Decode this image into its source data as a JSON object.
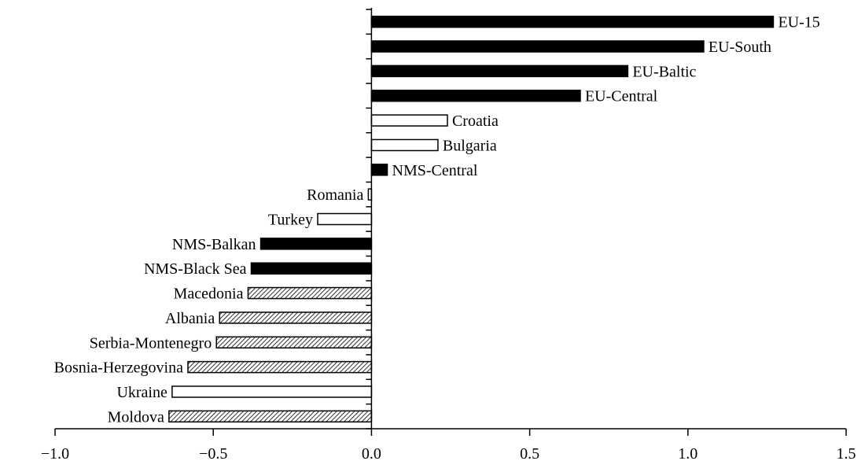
{
  "chart_data": {
    "type": "bar",
    "orientation": "horizontal",
    "title": "",
    "xlabel": "",
    "ylabel": "",
    "xlim": [
      -1.0,
      1.5
    ],
    "x_ticks": [
      -1.0,
      -0.5,
      0.0,
      0.5,
      1.0,
      1.5
    ],
    "x_tick_labels": [
      "−1.0",
      "−0.5",
      "0.0",
      "0.5",
      "1.0",
      "1.5"
    ],
    "grid": false,
    "legend": "none",
    "categories": [
      "EU-15",
      "EU-South",
      "EU-Baltic",
      "EU-Central",
      "Croatia",
      "Bulgaria",
      "NMS-Central",
      "Romania",
      "Turkey",
      "NMS-Balkan",
      "NMS-Black Sea",
      "Macedonia",
      "Albania",
      "Serbia-Montenegro",
      "Bosnia-Herzegovina",
      "Ukraine",
      "Moldova"
    ],
    "values": [
      1.27,
      1.05,
      0.81,
      0.66,
      0.24,
      0.21,
      0.05,
      -0.01,
      -0.17,
      -0.35,
      -0.38,
      -0.39,
      -0.48,
      -0.49,
      -0.58,
      -0.63,
      -0.64
    ],
    "fill_styles": [
      "solid",
      "solid",
      "solid",
      "solid",
      "hollow",
      "hollow",
      "solid",
      "hollow",
      "hollow",
      "solid",
      "solid",
      "hatched",
      "hatched",
      "hatched",
      "hatched",
      "hollow",
      "hatched"
    ],
    "colors": {
      "solid": "#000000",
      "hollow": "#ffffff",
      "hatch_line": "#000000",
      "hatch_bg": "#ffffff",
      "axis": "#000000"
    }
  }
}
